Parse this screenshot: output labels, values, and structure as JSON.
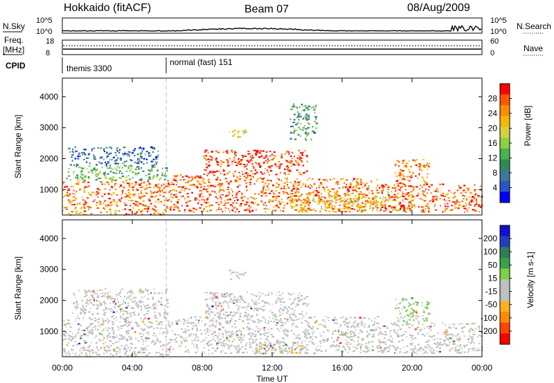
{
  "header": {
    "station": "Hokkaido (fitACF)",
    "beam": "Beam 07",
    "date": "08/Aug/2009"
  },
  "panels": {
    "nsky": {
      "label": "N.Sky",
      "ticks": [
        "10^5",
        "10^0"
      ]
    },
    "nsearch": {
      "label": "N.Search",
      "ticks": [
        "10^5",
        "10^0"
      ]
    },
    "freq": {
      "label_line1": "Freq.",
      "label_line2": "[MHz]",
      "ticks": [
        "18",
        "8"
      ]
    },
    "nave": {
      "label": "Nave",
      "ticks": [
        "60",
        "0"
      ]
    },
    "cpid": {
      "label": "CPID",
      "modes": [
        "themis 3300",
        "normal (fast) 151"
      ]
    }
  },
  "chart_data": [
    {
      "type": "heatmap",
      "title": "",
      "ylabel": "Slant Range [km]",
      "xlabel": "",
      "xlim": [
        "00:00",
        "24:00"
      ],
      "ylim": [
        180,
        4600
      ],
      "yticks": [
        "4000",
        "3000",
        "2000",
        "1000"
      ],
      "colorbar": {
        "label": "Power [dB]",
        "ticks": [
          "28",
          "24",
          "20",
          "16",
          "12",
          "8",
          "4"
        ],
        "range": [
          0,
          30
        ],
        "colors": [
          "#0000ff",
          "#2a55c8",
          "#3a7a9a",
          "#2e8b57",
          "#4caf50",
          "#90d040",
          "#d4d040",
          "#f5b800",
          "#ff8c00",
          "#ff5500",
          "#ff0000"
        ]
      },
      "regions": [
        {
          "t": [
            0,
            6
          ],
          "r": [
            200,
            1300
          ],
          "value": 24
        },
        {
          "t": [
            0.2,
            6
          ],
          "r": [
            1300,
            1800
          ],
          "value": 12
        },
        {
          "t": [
            0.3,
            5.5
          ],
          "r": [
            1800,
            2400
          ],
          "value": 6
        },
        {
          "t": [
            6,
            11
          ],
          "r": [
            300,
            1500
          ],
          "value": 26
        },
        {
          "t": [
            8,
            14
          ],
          "r": [
            1500,
            2300
          ],
          "value": 27
        },
        {
          "t": [
            11,
            18
          ],
          "r": [
            300,
            1400
          ],
          "value": 25
        },
        {
          "t": [
            13,
            20
          ],
          "r": [
            300,
            900
          ],
          "value": 20
        },
        {
          "t": [
            18,
            24
          ],
          "r": [
            300,
            1200
          ],
          "value": 26
        },
        {
          "t": [
            19,
            21
          ],
          "r": [
            1200,
            2000
          ],
          "value": 24
        },
        {
          "t": [
            9.5,
            10.5
          ],
          "r": [
            2700,
            3000
          ],
          "value": 18
        },
        {
          "t": [
            13,
            14.5
          ],
          "r": [
            2600,
            3800
          ],
          "value": 10
        }
      ]
    },
    {
      "type": "heatmap",
      "title": "",
      "ylabel": "Slant Range [km]",
      "xlabel": "Time UT",
      "xlim": [
        "00:00",
        "24:00"
      ],
      "ylim": [
        180,
        4600
      ],
      "xticks": [
        "00:00",
        "04:00",
        "08:00",
        "12:00",
        "16:00",
        "20:00",
        "00:00"
      ],
      "yticks": [
        "4000",
        "3000",
        "2000",
        "1000"
      ],
      "colorbar": {
        "label": "Velocity [m s-1]",
        "ticks": [
          "200",
          "100",
          "50",
          "15",
          "-15",
          "-50",
          "-100",
          "-200"
        ],
        "range": [
          -250,
          250
        ],
        "colors": [
          "#ff0000",
          "#ff4500",
          "#ff8c00",
          "#ffb020",
          "#c0c0c0",
          "#c0c0c0",
          "#7fd040",
          "#3aa050",
          "#2e7d5a",
          "#2040c0",
          "#1010d0"
        ]
      },
      "regions": [
        {
          "t": [
            0,
            6
          ],
          "r": [
            200,
            1400
          ],
          "value": 0
        },
        {
          "t": [
            0.5,
            6
          ],
          "r": [
            1400,
            2400
          ],
          "value": 0
        },
        {
          "t": [
            6,
            18
          ],
          "r": [
            300,
            1500
          ],
          "value": 0
        },
        {
          "t": [
            8,
            14
          ],
          "r": [
            1500,
            2300
          ],
          "value": 0
        },
        {
          "t": [
            18,
            24
          ],
          "r": [
            300,
            1300
          ],
          "value": 0
        },
        {
          "t": [
            11,
            14
          ],
          "r": [
            300,
            600
          ],
          "value": -60
        },
        {
          "t": [
            19,
            21
          ],
          "r": [
            1300,
            2100
          ],
          "value": 20
        },
        {
          "t": [
            9.5,
            10.5
          ],
          "r": [
            2700,
            3000
          ],
          "value": -30
        }
      ]
    }
  ],
  "colors": {
    "axis": "#000000",
    "dashed_marker": "#bbbbbb"
  }
}
